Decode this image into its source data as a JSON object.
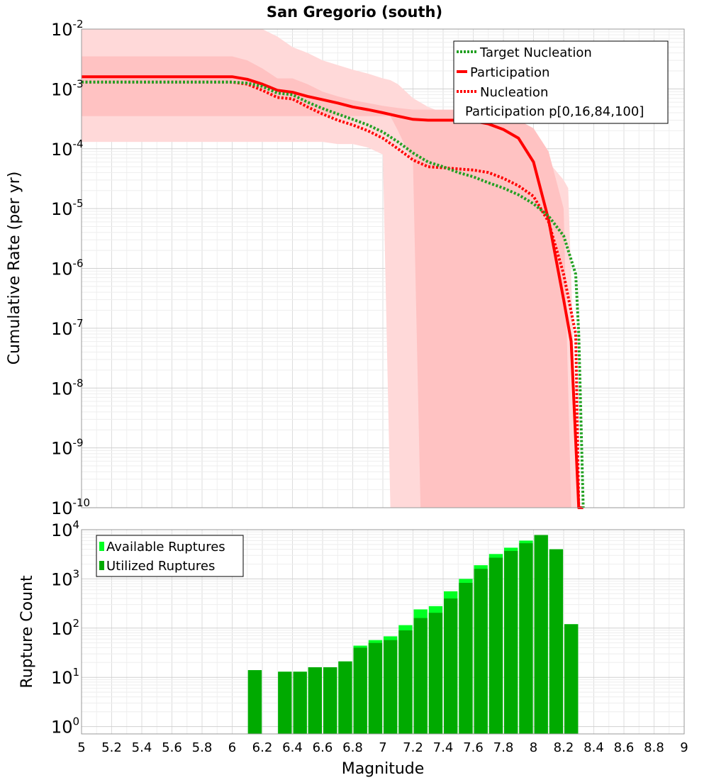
{
  "title": "San Gregorio (south)",
  "colors": {
    "target": "#22a022",
    "participation": "#ff0000",
    "band_outer": "#ffd9d9",
    "band_inner": "#ffc2c2",
    "available": "#00ff22",
    "utilized": "#00aa00"
  },
  "chart_data": [
    {
      "type": "line",
      "title": "San Gregorio (south)",
      "ylabel": "Cumulative Rate (per yr)",
      "xlim": [
        5,
        9
      ],
      "ylim": [
        1e-10,
        0.01
      ],
      "yscale": "log",
      "grid": true,
      "legend_position": "top-right",
      "x_ticks": [
        "5",
        "5.2",
        "5.4",
        "5.6",
        "5.8",
        "6",
        "6.2",
        "6.4",
        "6.6",
        "6.8",
        "7",
        "7.2",
        "7.4",
        "7.6",
        "7.8",
        "8",
        "8.2",
        "8.4",
        "8.6",
        "8.8",
        "9"
      ],
      "y_ticks": [
        {
          "base": "10",
          "exp": "-2"
        },
        {
          "base": "10",
          "exp": "-3"
        },
        {
          "base": "10",
          "exp": "-4"
        },
        {
          "base": "10",
          "exp": "-5"
        },
        {
          "base": "10",
          "exp": "-6"
        },
        {
          "base": "10",
          "exp": "-7"
        },
        {
          "base": "10",
          "exp": "-8"
        },
        {
          "base": "10",
          "exp": "-9"
        },
        {
          "base": "10",
          "exp": "-10"
        }
      ],
      "series": [
        {
          "name": "Target Nucleation",
          "style": "dotted",
          "x": [
            5.0,
            6.0,
            6.1,
            6.2,
            6.3,
            6.4,
            6.5,
            6.6,
            6.7,
            6.8,
            6.9,
            7.0,
            7.1,
            7.2,
            7.3,
            7.4,
            7.5,
            7.6,
            7.7,
            7.8,
            7.9,
            8.0,
            8.1,
            8.2,
            8.28,
            8.3,
            8.33
          ],
          "y": [
            0.0013,
            0.0013,
            0.00125,
            0.0011,
            0.00085,
            0.0008,
            0.0006,
            0.00047,
            0.00038,
            0.00031,
            0.00025,
            0.00019,
            0.00013,
            8.5e-05,
            6e-05,
            5e-05,
            4e-05,
            3.4e-05,
            2.7e-05,
            2.2e-05,
            1.7e-05,
            1.2e-05,
            7.5e-06,
            3.5e-06,
            8e-07,
            8e-08,
            1e-10
          ]
        },
        {
          "name": "Participation",
          "style": "solid",
          "x": [
            5.0,
            6.0,
            6.1,
            6.2,
            6.3,
            6.4,
            6.5,
            6.6,
            6.7,
            6.8,
            6.9,
            7.0,
            7.1,
            7.2,
            7.3,
            7.4,
            7.5,
            7.6,
            7.7,
            7.8,
            7.9,
            8.0,
            8.1,
            8.2,
            8.25,
            8.3,
            8.33
          ],
          "y": [
            0.0016,
            0.0016,
            0.00145,
            0.0012,
            0.00095,
            0.00088,
            0.00075,
            0.00066,
            0.00058,
            0.0005,
            0.00045,
            0.0004,
            0.00035,
            0.00031,
            0.0003,
            0.0003,
            0.0003,
            0.00029,
            0.00026,
            0.00021,
            0.00015,
            6e-05,
            6.5e-06,
            3e-07,
            6e-08,
            1e-10,
            1e-10
          ]
        },
        {
          "name": "Nucleation",
          "style": "dotted",
          "x": [
            5.0,
            6.0,
            6.1,
            6.2,
            6.3,
            6.4,
            6.5,
            6.6,
            6.7,
            6.8,
            6.9,
            7.0,
            7.1,
            7.2,
            7.3,
            7.4,
            7.5,
            7.6,
            7.7,
            7.8,
            7.9,
            8.0,
            8.1,
            8.2,
            8.28,
            8.3,
            8.33
          ],
          "y": [
            0.0013,
            0.0013,
            0.0012,
            0.00095,
            0.00072,
            0.00068,
            0.0005,
            0.00038,
            0.0003,
            0.00025,
            0.0002,
            0.00015,
            0.0001,
            6.5e-05,
            5e-05,
            4.8e-05,
            4.6e-05,
            4.4e-05,
            4e-05,
            3.2e-05,
            2.4e-05,
            1.6e-05,
            6e-06,
            8e-07,
            8e-08,
            1e-10,
            1e-10
          ]
        }
      ],
      "bands": [
        {
          "name": "Participation p[0,16,84,100]",
          "level": "outer (p0-p100)",
          "x": [
            5.0,
            5.3,
            5.8,
            6.0,
            6.1,
            6.2,
            6.3,
            6.4,
            6.5,
            6.6,
            6.7,
            6.8,
            6.9,
            7.0,
            7.05,
            7.1,
            7.2,
            7.3,
            7.4,
            7.5,
            7.6,
            7.7,
            7.8,
            7.9,
            8.0,
            8.1,
            8.2,
            8.23,
            8.3
          ],
          "upper": [
            0.01,
            0.01,
            0.01,
            0.01,
            0.01,
            0.01,
            0.0075,
            0.005,
            0.004,
            0.003,
            0.0025,
            0.0021,
            0.0018,
            0.0015,
            0.0014,
            0.0012,
            0.0007,
            0.0005,
            0.0004,
            0.0004,
            0.0004,
            0.00035,
            0.0003,
            0.00022,
            0.00015,
            6e-05,
            3e-05,
            2.2e-05,
            1e-10
          ],
          "lower": [
            0.00013,
            0.00013,
            0.00013,
            0.00013,
            0.00013,
            0.00013,
            0.00013,
            0.00013,
            0.00013,
            0.00013,
            0.00012,
            0.00012,
            0.000105,
            8e-05,
            1e-10,
            1e-10,
            1e-10,
            1e-10,
            1e-10,
            1e-10,
            1e-10,
            1e-10,
            1e-10,
            1e-10,
            1e-10,
            1e-10,
            1e-10,
            1e-10,
            1e-10
          ]
        },
        {
          "name": "Participation p[0,16,84,100]",
          "level": "inner (p16-p84)",
          "x": [
            5.0,
            6.0,
            6.1,
            6.2,
            6.3,
            6.4,
            6.5,
            6.6,
            6.7,
            6.8,
            6.9,
            7.0,
            7.05,
            7.1,
            7.2,
            7.25,
            7.3,
            7.4,
            7.5,
            7.6,
            7.7,
            7.8,
            7.9,
            8.0,
            8.1,
            8.2,
            8.25
          ],
          "upper": [
            0.0035,
            0.0035,
            0.003,
            0.0022,
            0.0015,
            0.0015,
            0.0012,
            0.0009,
            0.00075,
            0.00065,
            0.00058,
            0.00052,
            0.0005,
            0.00048,
            0.00045,
            0.00045,
            0.00045,
            0.00045,
            0.00045,
            0.00045,
            0.00045,
            0.0004,
            0.0003,
            0.00022,
            9e-05,
            1e-05,
            1e-10
          ],
          "lower": [
            0.00035,
            0.00035,
            0.00035,
            0.00035,
            0.00035,
            0.00035,
            0.00035,
            0.00035,
            0.00035,
            0.00035,
            0.00035,
            0.00035,
            0.00035,
            0.0002,
            6e-05,
            1e-10,
            1e-10,
            1e-10,
            1e-10,
            1e-10,
            1e-10,
            1e-10,
            1e-10,
            1e-10,
            1e-10,
            1e-10,
            1e-10
          ]
        }
      ]
    },
    {
      "type": "bar",
      "xlabel": "Magnitude",
      "ylabel": "Rupture Count",
      "xlim": [
        5,
        9
      ],
      "ylim": [
        1,
        10000
      ],
      "yscale": "log",
      "grid": true,
      "legend_position": "top-left",
      "bin_width": 0.1,
      "x_ticks": [
        "5",
        "5.2",
        "5.4",
        "5.6",
        "5.8",
        "6",
        "6.2",
        "6.4",
        "6.6",
        "6.8",
        "7",
        "7.2",
        "7.4",
        "7.6",
        "7.8",
        "8",
        "8.2",
        "8.4",
        "8.6",
        "8.8",
        "9"
      ],
      "y_ticks": [
        {
          "base": "10",
          "exp": "4"
        },
        {
          "base": "10",
          "exp": "3"
        },
        {
          "base": "10",
          "exp": "2"
        },
        {
          "base": "10",
          "exp": "1"
        },
        {
          "base": "10",
          "exp": "0"
        }
      ],
      "categories": [
        6.15,
        6.35,
        6.45,
        6.55,
        6.65,
        6.75,
        6.85,
        6.95,
        7.05,
        7.15,
        7.25,
        7.35,
        7.45,
        7.55,
        7.65,
        7.75,
        7.85,
        7.95,
        8.05,
        8.15,
        8.25
      ],
      "series": [
        {
          "name": "Available Ruptures",
          "values": [
            14,
            13,
            13,
            16,
            16,
            21,
            44,
            57,
            68,
            115,
            240,
            280,
            560,
            1000,
            1900,
            3200,
            4300,
            6000,
            7800,
            4000,
            120
          ]
        },
        {
          "name": "Utilized Ruptures",
          "values": [
            14,
            13,
            13,
            16,
            16,
            21,
            40,
            50,
            57,
            90,
            160,
            205,
            400,
            830,
            1600,
            2700,
            3700,
            5300,
            7800,
            4000,
            120
          ]
        }
      ]
    }
  ]
}
